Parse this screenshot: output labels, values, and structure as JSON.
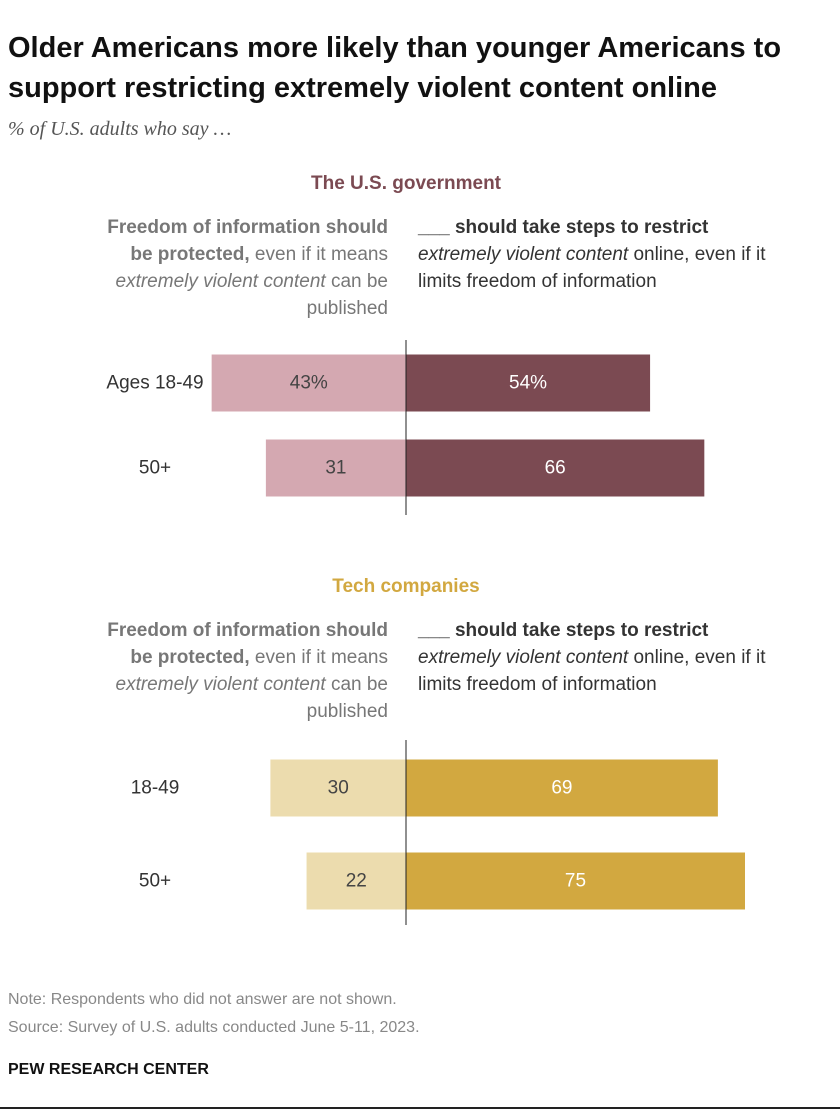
{
  "title": "Older Americans more likely than younger Americans to support restricting extremely violent content online",
  "subtitle": "% of U.S. adults who say …",
  "note": "Note: Respondents who did not answer are not shown.",
  "source": "Source: Survey of U.S. adults conducted June 5-11, 2023.",
  "credit": "PEW RESEARCH CENTER",
  "chart_data": [
    {
      "type": "diverging-bar",
      "title": "The U.S. government",
      "title_color": "#7b4a52",
      "left_header": [
        "Freedom of information should be protected,",
        " even if it means ",
        "extremely violent content",
        " can be published"
      ],
      "right_header": [
        "___ should take steps to restrict",
        " extremely violent content",
        " online, even if it limits freedom of information"
      ],
      "categories": [
        "Ages 18-49",
        "50+"
      ],
      "series": [
        {
          "color": "#d4a8b1",
          "side": "left",
          "values": [
            43,
            31
          ],
          "value_labels": [
            "43%",
            "31"
          ]
        },
        {
          "color": "#7b4a52",
          "side": "right",
          "values": [
            54,
            66
          ],
          "value_labels": [
            "54%",
            "66"
          ]
        }
      ]
    },
    {
      "type": "diverging-bar",
      "title": "Tech companies",
      "title_color": "#d2a840",
      "left_header": [
        "Freedom of information should be protected,",
        " even if it means ",
        "extremely violent content",
        " can be published"
      ],
      "right_header": [
        "___ should take steps to restrict",
        " extremely violent content",
        " online, even if it limits freedom of information"
      ],
      "categories": [
        "18-49",
        "50+"
      ],
      "series": [
        {
          "color": "#ecdcae",
          "side": "left",
          "values": [
            30,
            22
          ]
        },
        {
          "color": "#d2a840",
          "side": "right",
          "values": [
            69,
            75
          ]
        }
      ]
    }
  ]
}
